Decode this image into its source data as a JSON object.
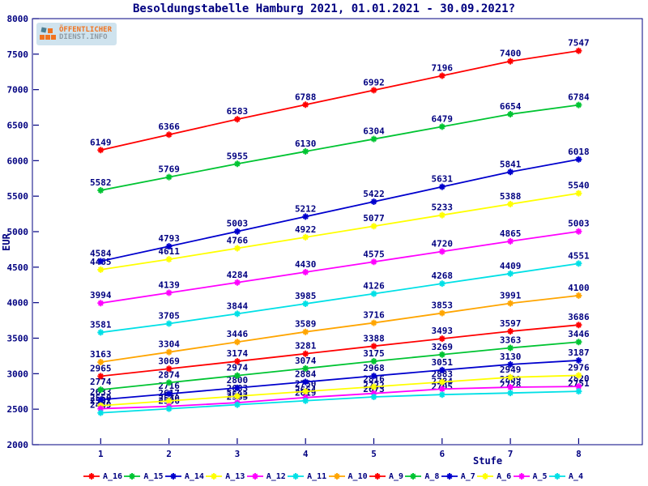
{
  "title": "Besoldungstabelle Hamburg 2021, 01.01.2021 - 30.09.2021?",
  "logo": {
    "line1": "ÖFFENTLICHER",
    "line2": "DIENST.INFO",
    "background": "#cfe3ee",
    "orange": "#f1731f",
    "gray": "#8e9ba5"
  },
  "colors": {
    "axis": "#000080",
    "value_labels": "#000080",
    "title": "#000080"
  },
  "chart_data": {
    "type": "line",
    "title": "Besoldungstabelle Hamburg 2021, 01.01.2021 - 30.09.2021?",
    "xlabel": "Stufe",
    "ylabel": "EUR",
    "x": [
      1,
      2,
      3,
      4,
      5,
      6,
      7,
      8
    ],
    "xticks": [
      "1",
      "2",
      "3",
      "4",
      "5",
      "6",
      "7",
      "8"
    ],
    "yticks": [
      2000,
      2500,
      3000,
      3500,
      4000,
      4500,
      5000,
      5500,
      6000,
      6500,
      7000,
      7500,
      8000
    ],
    "ylim": [
      2000,
      8000
    ],
    "grid": false,
    "legend_position": "bottom",
    "point_labels": true,
    "series": [
      {
        "name": "A_16",
        "color": "#ff0000",
        "values": [
          6149,
          6366,
          6583,
          6788,
          6992,
          7196,
          7400,
          7547
        ]
      },
      {
        "name": "A_15",
        "color": "#00c432",
        "values": [
          5582,
          5769,
          5955,
          6130,
          6304,
          6479,
          6654,
          6784
        ]
      },
      {
        "name": "A_14",
        "color": "#0000cd",
        "values": [
          4584,
          4793,
          5003,
          5212,
          5422,
          5631,
          5841,
          6018
        ]
      },
      {
        "name": "A_13",
        "color": "#ffff00",
        "values": [
          4465,
          4611,
          4766,
          4922,
          5077,
          5233,
          5388,
          5540
        ]
      },
      {
        "name": "A_12",
        "color": "#ff00ff",
        "values": [
          3994,
          4139,
          4284,
          4430,
          4575,
          4720,
          4865,
          5003
        ]
      },
      {
        "name": "A_11",
        "color": "#00e0e6",
        "values": [
          3581,
          3705,
          3844,
          3985,
          4126,
          4268,
          4409,
          4551
        ]
      },
      {
        "name": "A_10",
        "color": "#ffa500",
        "values": [
          3163,
          3304,
          3446,
          3589,
          3716,
          3853,
          3991,
          4100
        ]
      },
      {
        "name": "A_9",
        "color": "#ff0000",
        "values": [
          2965,
          3069,
          3174,
          3281,
          3388,
          3493,
          3597,
          3686
        ]
      },
      {
        "name": "A_8",
        "color": "#00c432",
        "values": [
          2774,
          2874,
          2974,
          3074,
          3175,
          3269,
          3363,
          3446
        ]
      },
      {
        "name": "A_7",
        "color": "#0000cd",
        "values": [
          2633,
          2716,
          2800,
          2884,
          2968,
          3051,
          3130,
          3187
        ]
      },
      {
        "name": "A_6",
        "color": "#ffff00",
        "values": [
          2550,
          2617,
          2683,
          2750,
          2816,
          2883,
          2949,
          2976
        ]
      },
      {
        "name": "A_5",
        "color": "#ff00ff",
        "values": [
          2507,
          2540,
          2592,
          2664,
          2722,
          2784,
          2809,
          2820
        ]
      },
      {
        "name": "A_4",
        "color": "#00e0e6",
        "values": [
          2449,
          2506,
          2563,
          2619,
          2673,
          2705,
          2728,
          2751
        ]
      }
    ]
  }
}
